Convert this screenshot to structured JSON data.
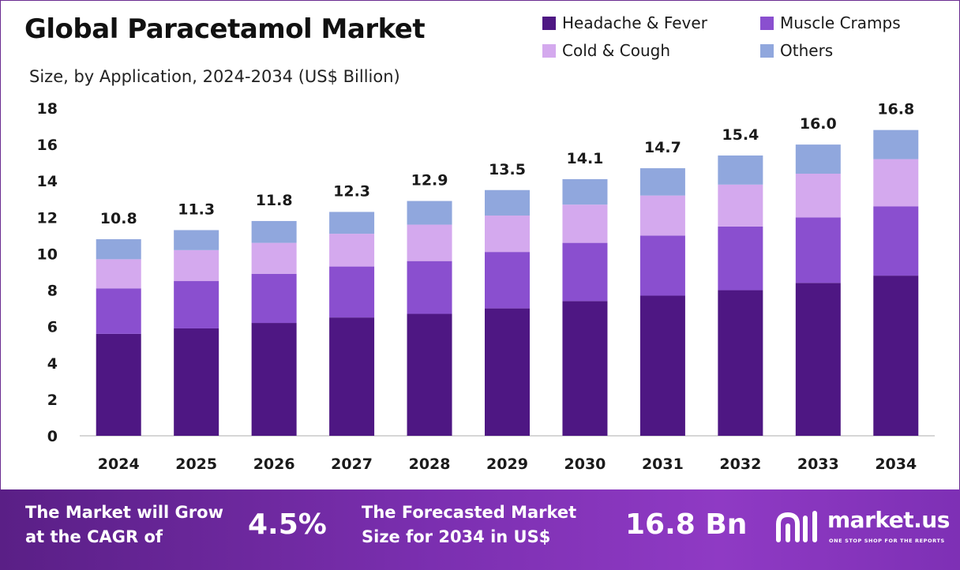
{
  "header": {
    "title": "Global Paracetamol Market",
    "subtitle": "Size, by Application, 2024-2034 (US$ Billion)"
  },
  "chart_data": {
    "type": "bar",
    "stacked": true,
    "title": "Global Paracetamol Market",
    "subtitle": "Size, by Application, 2024-2034 (US$ Billion)",
    "categories": [
      "2024",
      "2025",
      "2026",
      "2027",
      "2028",
      "2029",
      "2030",
      "2031",
      "2032",
      "2033",
      "2034"
    ],
    "totals": [
      10.8,
      11.3,
      11.8,
      12.3,
      12.9,
      13.5,
      14.1,
      14.7,
      15.4,
      16.0,
      16.8
    ],
    "total_labels": [
      "10.8",
      "11.3",
      "11.8",
      "12.3",
      "12.9",
      "13.5",
      "14.1",
      "14.7",
      "15.4",
      "16.0",
      "16.8"
    ],
    "series": [
      {
        "name": "Headache & Fever",
        "color": "#4e1783",
        "values": [
          5.6,
          5.9,
          6.2,
          6.5,
          6.7,
          7.0,
          7.4,
          7.7,
          8.0,
          8.4,
          8.8
        ]
      },
      {
        "name": "Muscle Cramps",
        "color": "#8a4fcf",
        "values": [
          2.5,
          2.6,
          2.7,
          2.8,
          2.9,
          3.1,
          3.2,
          3.3,
          3.5,
          3.6,
          3.8
        ]
      },
      {
        "name": "Cold & Cough",
        "color": "#d4a9ee",
        "values": [
          1.6,
          1.7,
          1.7,
          1.8,
          2.0,
          2.0,
          2.1,
          2.2,
          2.3,
          2.4,
          2.6
        ]
      },
      {
        "name": "Others",
        "color": "#90a7dd",
        "values": [
          1.1,
          1.1,
          1.2,
          1.2,
          1.3,
          1.4,
          1.4,
          1.5,
          1.6,
          1.6,
          1.6
        ]
      }
    ],
    "yticks": [
      "0",
      "2",
      "4",
      "6",
      "8",
      "10",
      "12",
      "14",
      "16",
      "18"
    ],
    "ylim": [
      0,
      18
    ],
    "xlabel": "",
    "ylabel": "",
    "grid": false,
    "legend_position": "top-right"
  },
  "banner": {
    "cagr_text_line1": "The Market will Grow",
    "cagr_text_line2": "at the CAGR of",
    "cagr_value": "4.5%",
    "forecast_text_line1": "The Forecasted Market",
    "forecast_text_line2": "Size for 2034 in US$",
    "forecast_value": "16.8 Bn",
    "logo_name": "market.us",
    "logo_tagline": "ONE STOP SHOP FOR THE REPORTS",
    "logo_icon": "market-us-logo-icon"
  },
  "colors": {
    "brand_purple": "#6a2c91",
    "banner_start": "#5a1f86",
    "banner_end": "#8f3ac4"
  }
}
